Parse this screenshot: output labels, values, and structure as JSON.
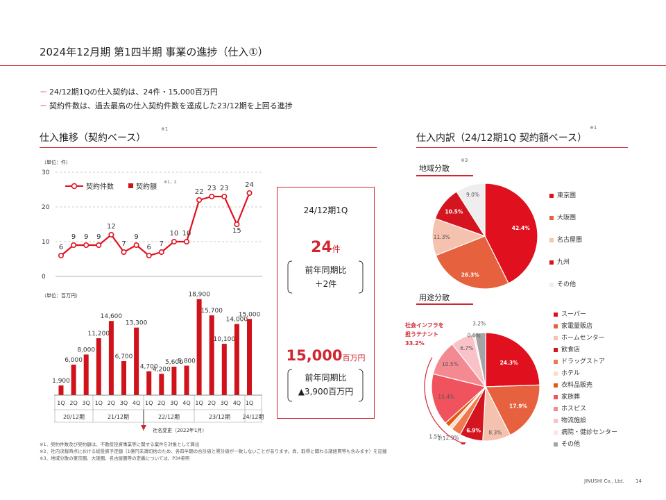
{
  "header": {
    "title": "2024年12月期 第1四半期 事業の進捗（仕入①）",
    "bullets": [
      "24/12期1Qの仕入契約は、24件・15,000百万円",
      "契約件数は、過去最高の仕入契約件数を達成した23/12期を上回る進捗"
    ]
  },
  "left_section": {
    "title": "仕入推移（契約ベース）",
    "note": "※1"
  },
  "right_section": {
    "title": "仕入内訳（24/12期1Q 契約額ベース）",
    "note": "※1"
  },
  "kpi": {
    "period": "24/12期1Q",
    "count_value": "24",
    "count_unit": "件",
    "count_yoy_label": "前年同期比",
    "count_yoy_value": "＋2件",
    "amount_value": "15,000",
    "amount_unit": "百万円",
    "amount_yoy_label": "前年同期比",
    "amount_yoy_value": "▲3,900百万円"
  },
  "colors": {
    "accent": "#d12530",
    "line": "#e0101e",
    "bar": "#d0121b"
  },
  "chart_data": [
    {
      "type": "line",
      "title": "契約件数",
      "ylabel": "（単位：件）",
      "ylim": [
        0,
        30
      ],
      "yticks": [
        "0",
        "10",
        "20",
        "30"
      ],
      "legend": {
        "count": "契約件数",
        "amount": "契約額",
        "amount_note": "※1，2"
      },
      "values": [
        6,
        9,
        9,
        9,
        12,
        7,
        9,
        6,
        7,
        10,
        10,
        22,
        23,
        23,
        15,
        24
      ],
      "labels": [
        "6",
        "9",
        "9",
        "9",
        "12",
        "7",
        "9",
        "6",
        "7",
        "10",
        "10",
        "22",
        "23",
        "23",
        "15",
        "24"
      ]
    },
    {
      "type": "bar",
      "title": "契約額",
      "ylabel": "（単位：百万円）",
      "ylim": [
        0,
        19000
      ],
      "categories": [
        "1Q",
        "2Q",
        "3Q",
        "1Q",
        "2Q",
        "3Q",
        "4Q",
        "1Q",
        "2Q",
        "3Q",
        "4Q",
        "1Q",
        "2Q",
        "3Q",
        "4Q",
        "1Q"
      ],
      "values": [
        1900,
        6000,
        8000,
        11200,
        14600,
        6700,
        13300,
        4700,
        4200,
        5600,
        5800,
        18900,
        15700,
        10100,
        14000,
        15000
      ],
      "labels": [
        "1,900",
        "6,000",
        "8,000",
        "11,200",
        "14,600",
        "6,700",
        "13,300",
        "4,700",
        "4,200",
        "5,600",
        "5,800",
        "18,900",
        "15,700",
        "10,100",
        "14,000",
        "15,000"
      ],
      "groups": [
        "20/12期",
        "21/12期",
        "22/12期",
        "23/12期",
        "24/12期"
      ],
      "annotation": "社名変更（2022年1月）"
    },
    {
      "type": "pie",
      "title": "地域分散",
      "note": "※3",
      "legend": [
        "東京圏",
        "大阪圏",
        "名古屋圏",
        "九州",
        "その他"
      ],
      "values": [
        42.4,
        26.3,
        11.3,
        10.5,
        9.0
      ],
      "labels": [
        "42.4%",
        "26.3%",
        "11.3%",
        "10.5%",
        "9.0%"
      ],
      "colors": [
        "#e0101e",
        "#e6613e",
        "#f4c2ae",
        "#d4141e",
        "#eeeeee"
      ]
    },
    {
      "type": "pie",
      "title": "用途分散",
      "legend": [
        "スーパー",
        "家電量販店",
        "ホームセンター",
        "飲食店",
        "ドラッグストア",
        "ホテル",
        "衣料品販売",
        "家族葬",
        "ホスピス",
        "物流施設",
        "病院・健診センター",
        "その他"
      ],
      "values": [
        24.3,
        17.9,
        8.3,
        6.9,
        2.9,
        1.1,
        1.5,
        15.4,
        10.5,
        6.7,
        0.6,
        3.2
      ],
      "labels": [
        "24.3%",
        "17.9%",
        "8.3%",
        "6.9%",
        "2.9%",
        "1.1",
        "1.5%",
        "15.4%",
        "10.5%",
        "6.7%",
        "0.6%",
        "3.2%"
      ],
      "colors": [
        "#e0101e",
        "#e6613e",
        "#f4c2ae",
        "#d4141e",
        "#ee7a4e",
        "#fadcca",
        "#e25a12",
        "#f0525e",
        "#f38a92",
        "#f8c2c8",
        "#fbe3e6",
        "#a4a4a4"
      ],
      "annotation": [
        "社会インフラを",
        "担うテナント",
        "33.2%"
      ]
    }
  ],
  "footnotes": [
    "※1．契約件数及び契約額は、不動産投資事業等に関する案件を対象として算出",
    "※2．社内決裁時点における総投資予定額（1億円未満切捨のため、各四半期の合計値と累計値が一致しないことがあります。尚、取得に関わる諸経費等も含みます）を記載",
    "※3．地域分散の東京圏、大阪圏、名古屋圏等の定義については、P34参照"
  ],
  "footer": {
    "company": "JINUSHI Co., Ltd.",
    "page": "14"
  }
}
